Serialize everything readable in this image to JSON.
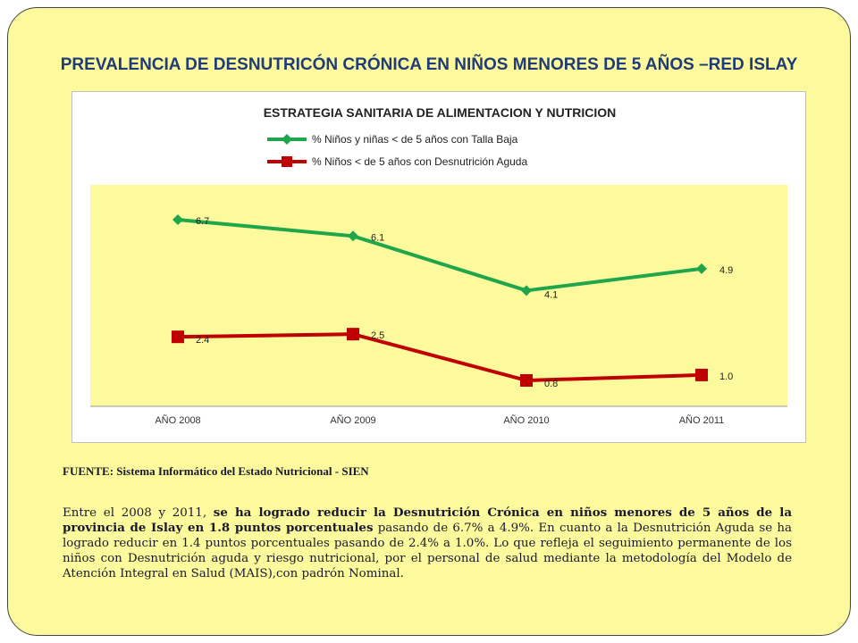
{
  "slide": {
    "title": "PREVALENCIA DE DESNUTRICÓN CRÓNICA  EN NIÑOS MENORES DE 5  AÑOS –RED ISLAY",
    "source": "FUENTE: Sistema Informático del Estado Nutricional  - SIEN",
    "paragraph": {
      "p1": "Entre el 2008 y 2011, ",
      "p2": "se ha logrado reducir la Desnutrición Crónica en niños menores de 5 años de la provincia de Islay   en 1.8 puntos porcentuales",
      "p3": " pasando de 6.7% a 4.9%. En cuanto a la Desnutrición Aguda se ha logrado reducir en 1.4 puntos porcentuales pasando de 2.4% a 1.0%. Lo que refleja el seguimiento permanente de los niños con Desnutrición aguda y riesgo nutricional, por el personal de salud mediante la metodología del Modelo de Atención Integral en Salud (MAIS),con padrón Nominal."
    }
  },
  "colors": {
    "slide_bg": "#fdf99d",
    "plot_bg": "#fdf99d",
    "title": "#1f3b78",
    "series_green": "#1fa64a",
    "series_red": "#c00000",
    "text": "#1a1a2e"
  },
  "chart_data": {
    "type": "line",
    "title": "ESTRATEGIA SANITARIA DE ALIMENTACION Y NUTRICION",
    "categories": [
      "AÑO 2008",
      "AÑO 2009",
      "AÑO 2010",
      "AÑO 2011"
    ],
    "series": [
      {
        "name": "% Niños y niñas  < de 5 años con Talla Baja",
        "values": [
          6.7,
          6.1,
          4.1,
          4.9
        ],
        "labels": [
          "6.7",
          "6.1",
          "4.1",
          "4.9"
        ],
        "color": "#1fa64a",
        "marker": "diamond"
      },
      {
        "name": "% Niños < de 5 años con Desnutrición Aguda",
        "values": [
          2.4,
          2.5,
          0.8,
          1.0
        ],
        "labels": [
          "2.4",
          "2.5",
          "0.8",
          "1.0"
        ],
        "color": "#c00000",
        "marker": "square"
      }
    ],
    "ylim": [
      0,
      8
    ],
    "grid": false,
    "legend_position": "top"
  }
}
